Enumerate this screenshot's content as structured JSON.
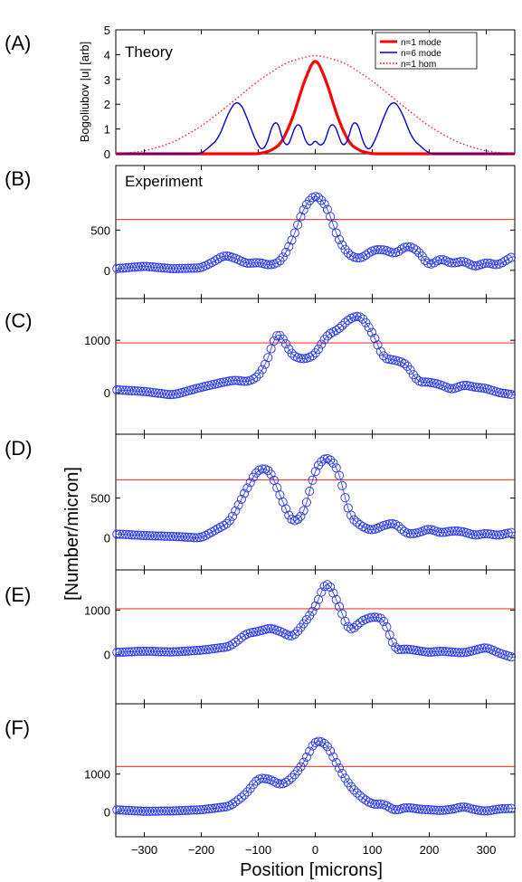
{
  "chart_data": [
    {
      "type": "line",
      "panel": "(A)",
      "annotation": "Theory",
      "ylabel": "Bogoliubov |u|   [arb]",
      "xlim": [
        -350,
        350
      ],
      "ylim": [
        0,
        5
      ],
      "yticks": [
        0,
        1,
        2,
        3,
        4,
        5
      ],
      "legend_position": "top-right",
      "series": [
        {
          "name": "n=1 mode",
          "color": "#ff0000",
          "style": "solid",
          "x": [
            -350,
            -300,
            -250,
            -200,
            -150,
            -100,
            -80,
            -60,
            -40,
            -20,
            0,
            20,
            40,
            60,
            80,
            100,
            150,
            200,
            250,
            300,
            350
          ],
          "y": [
            0,
            0,
            0,
            0,
            0,
            0,
            0.1,
            0.4,
            1.4,
            2.9,
            3.95,
            2.9,
            1.4,
            0.4,
            0.1,
            0,
            0,
            0,
            0,
            0,
            0
          ]
        },
        {
          "name": "n=6 mode",
          "color": "#0000dd",
          "style": "solid",
          "x": [
            -350,
            -250,
            -200,
            -170,
            -150,
            -135,
            -120,
            -105,
            -90,
            -80,
            -70,
            -60,
            -52,
            -40,
            -30,
            -20,
            -12,
            -4,
            0,
            4,
            12,
            20,
            30,
            40,
            52,
            60,
            70,
            80,
            90,
            105,
            120,
            135,
            150,
            170,
            200,
            250,
            350
          ],
          "y": [
            0,
            0,
            0,
            0.6,
            1.8,
            2.2,
            1.5,
            0.5,
            0,
            0.8,
            1.55,
            0.9,
            0,
            0.8,
            1.45,
            0.8,
            0,
            0.6,
            0.6,
            0.6,
            0,
            0.8,
            1.45,
            0.8,
            0,
            0.9,
            1.55,
            0.8,
            0,
            0.5,
            1.5,
            2.2,
            1.8,
            0.6,
            0,
            0,
            0
          ]
        },
        {
          "name": "n=1 hom",
          "color": "#ff0000",
          "style": "dotted",
          "x": [
            -350,
            -300,
            -250,
            -200,
            -150,
            -100,
            -50,
            0,
            50,
            100,
            150,
            200,
            250,
            300,
            350
          ],
          "y": [
            0,
            0.1,
            0.45,
            1.1,
            2.0,
            2.95,
            3.7,
            4.0,
            3.7,
            2.95,
            2.0,
            1.1,
            0.45,
            0.1,
            0
          ]
        }
      ]
    },
    {
      "type": "scatter",
      "panel": "(B)",
      "annotation": "Experiment",
      "ylim": [
        -350,
        1300
      ],
      "yticks": [
        0,
        500
      ],
      "threshold": 630,
      "x": [
        -350,
        -300,
        -250,
        -200,
        -175,
        -160,
        -140,
        -120,
        -100,
        -80,
        -60,
        -40,
        -20,
        0,
        20,
        40,
        60,
        80,
        100,
        120,
        140,
        160,
        180,
        200,
        220,
        240,
        260,
        280,
        300,
        320,
        350
      ],
      "y": [
        20,
        50,
        20,
        30,
        120,
        190,
        150,
        80,
        100,
        60,
        110,
        380,
        780,
        950,
        800,
        390,
        180,
        140,
        250,
        260,
        200,
        310,
        250,
        50,
        150,
        80,
        120,
        40,
        100,
        60,
        190
      ]
    },
    {
      "type": "scatter",
      "panel": "(C)",
      "ylim": [
        -800,
        1800
      ],
      "yticks": [
        0,
        1000
      ],
      "threshold": 950,
      "x": [
        -350,
        -300,
        -250,
        -200,
        -160,
        -140,
        -120,
        -100,
        -80,
        -70,
        -60,
        -40,
        -20,
        0,
        20,
        40,
        60,
        80,
        100,
        120,
        140,
        160,
        180,
        200,
        220,
        240,
        260,
        280,
        300,
        320,
        350
      ],
      "y": [
        50,
        20,
        -50,
        100,
        200,
        240,
        200,
        300,
        700,
        1150,
        1100,
        700,
        630,
        720,
        1100,
        1200,
        1420,
        1480,
        1150,
        650,
        620,
        550,
        200,
        200,
        150,
        50,
        150,
        100,
        80,
        0,
        -50
      ]
    },
    {
      "type": "scatter",
      "panel": "(D)",
      "ylim": [
        -400,
        1300
      ],
      "yticks": [
        0,
        500
      ],
      "threshold": 730,
      "x": [
        -350,
        -300,
        -250,
        -200,
        -150,
        -120,
        -100,
        -80,
        -60,
        -40,
        -20,
        0,
        20,
        40,
        60,
        80,
        100,
        120,
        140,
        160,
        180,
        200,
        220,
        240,
        260,
        280,
        300,
        320,
        350
      ],
      "y": [
        50,
        30,
        20,
        0,
        200,
        620,
        870,
        860,
        500,
        180,
        300,
        870,
        1030,
        870,
        280,
        150,
        90,
        160,
        190,
        50,
        60,
        120,
        60,
        90,
        80,
        30,
        60,
        30,
        80
      ]
    },
    {
      "type": "scatter",
      "panel": "(E)",
      "ylim": [
        -1100,
        1900
      ],
      "yticks": [
        0,
        1000
      ],
      "threshold": 1030,
      "x": [
        -350,
        -300,
        -250,
        -200,
        -150,
        -120,
        -100,
        -80,
        -60,
        -40,
        -20,
        0,
        20,
        40,
        60,
        80,
        100,
        120,
        140,
        160,
        180,
        200,
        220,
        240,
        260,
        280,
        300,
        320,
        350
      ],
      "y": [
        50,
        80,
        60,
        100,
        180,
        480,
        520,
        600,
        520,
        380,
        700,
        1050,
        1700,
        1150,
        500,
        750,
        850,
        820,
        100,
        130,
        90,
        50,
        80,
        60,
        40,
        100,
        170,
        50,
        -80
      ]
    },
    {
      "type": "scatter",
      "panel": "(F)",
      "ylim": [
        -650,
        2850
      ],
      "yticks": [
        0,
        1000
      ],
      "threshold": 1200,
      "x": [
        -350,
        -300,
        -250,
        -200,
        -150,
        -120,
        -100,
        -80,
        -60,
        -40,
        -20,
        0,
        20,
        40,
        60,
        80,
        100,
        120,
        140,
        160,
        180,
        200,
        220,
        240,
        260,
        280,
        300,
        320,
        350
      ],
      "y": [
        60,
        20,
        30,
        60,
        150,
        500,
        900,
        870,
        700,
        900,
        1300,
        1900,
        1800,
        1200,
        700,
        400,
        200,
        220,
        30,
        130,
        80,
        60,
        40,
        70,
        150,
        60,
        20,
        80,
        100
      ]
    }
  ],
  "panel_labels": [
    "(A)",
    "(B)",
    "(C)",
    "(D)",
    "(E)",
    "(F)"
  ],
  "shared_ylabel": "[Number/micron]",
  "xlabel": "Position [microns]",
  "xticks": [
    -300,
    -200,
    -100,
    0,
    100,
    200,
    300
  ]
}
